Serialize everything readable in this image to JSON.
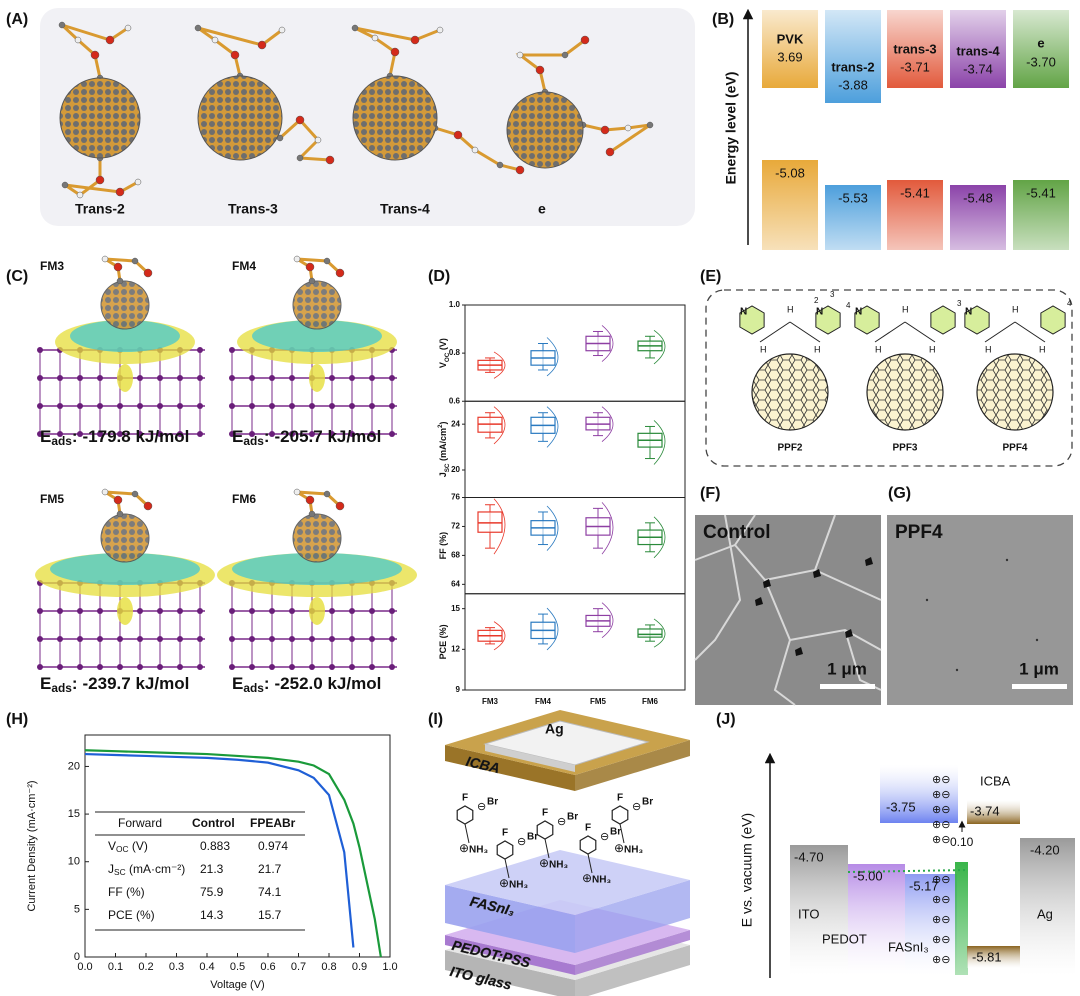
{
  "panel_a": {
    "label": "(A)",
    "molecules": [
      "Trans-2",
      "Trans-3",
      "Trans-4",
      "e"
    ]
  },
  "panel_b": {
    "label": "(B)",
    "axis_label": "Energy level (eV)",
    "columns": [
      {
        "name": "PVK",
        "lumo": "3.69",
        "homo": "-5.08",
        "color": "#e8a93a"
      },
      {
        "name": "trans-2",
        "lumo": "-3.88",
        "homo": "-5.53",
        "color": "#4d9fdc"
      },
      {
        "name": "trans-3",
        "lumo": "-3.71",
        "homo": "-5.41",
        "color": "#e25a3c"
      },
      {
        "name": "trans-4",
        "lumo": "-3.74",
        "homo": "-5.48",
        "color": "#8b43a9"
      },
      {
        "name": "e",
        "lumo": "-3.70",
        "homo": "-5.41",
        "color": "#62a446"
      }
    ]
  },
  "panel_c": {
    "label": "(C)",
    "energy_symbol": "E",
    "energy_subscript": "ads",
    "energy_separator": ":",
    "models": [
      {
        "name": "FM3",
        "energy": "-179.8 kJ/mol"
      },
      {
        "name": "FM4",
        "energy": "-205.7 kJ/mol"
      },
      {
        "name": "FM5",
        "energy": "-239.7 kJ/mol"
      },
      {
        "name": "FM6",
        "energy": "-252.0 kJ/mol"
      }
    ]
  },
  "panel_d": {
    "label": "(D)",
    "type": "box",
    "categories": [
      "FM3",
      "FM4",
      "FM5",
      "FM6"
    ],
    "colors": [
      "#e8392b",
      "#2a7ac0",
      "#8e3fa3",
      "#2a8a3a"
    ],
    "subplots": [
      {
        "y_label": [
          {
            "text": "V"
          },
          {
            "text": "OC",
            "sub": true
          },
          {
            "text": " (V)"
          }
        ],
        "ylim": [
          0.6,
          1.0
        ],
        "yticks": [
          0.6,
          0.8,
          {
            "value": 1.0,
            "label": "1.0"
          }
        ],
        "boxes": [
          [
            0.72,
            0.73,
            0.75,
            0.77,
            0.78
          ],
          [
            0.73,
            0.75,
            0.78,
            0.81,
            0.84
          ],
          [
            0.79,
            0.81,
            0.84,
            0.87,
            0.89
          ],
          [
            0.78,
            0.81,
            0.83,
            0.85,
            0.87
          ]
        ]
      },
      {
        "y_label": [
          {
            "text": "J"
          },
          {
            "text": "SC",
            "sub": true
          },
          {
            "text": " (mA/cm"
          },
          {
            "text": "2",
            "sup": true
          },
          {
            "text": ")"
          }
        ],
        "ylim": [
          17.6,
          26
        ],
        "yticks": [
          20,
          24
        ],
        "boxes": [
          [
            22.8,
            23.3,
            24,
            24.6,
            25
          ],
          [
            22.5,
            23.2,
            23.9,
            24.6,
            25
          ],
          [
            23,
            23.5,
            24,
            24.6,
            25
          ],
          [
            21,
            22,
            22.6,
            23.2,
            23.8
          ]
        ]
      },
      {
        "y_label": [
          {
            "text": "FF (%)"
          }
        ],
        "ylim": [
          62.7,
          76
        ],
        "yticks": [
          64,
          68,
          72,
          76
        ],
        "boxes": [
          [
            69,
            71.2,
            72.5,
            74,
            75
          ],
          [
            69.5,
            70.8,
            71.8,
            72.8,
            74
          ],
          [
            69,
            70.8,
            72,
            73.2,
            74.5
          ],
          [
            68.5,
            69.5,
            70.5,
            71.5,
            72.5
          ]
        ]
      },
      {
        "y_label": [
          {
            "text": "PCE (%)"
          }
        ],
        "ylim": [
          9,
          16.1
        ],
        "yticks": [
          9,
          12,
          15
        ],
        "boxes": [
          [
            12.4,
            12.6,
            13,
            13.4,
            13.6
          ],
          [
            12.4,
            12.8,
            13.4,
            14,
            14.6
          ],
          [
            13.3,
            13.7,
            14.1,
            14.5,
            15
          ],
          [
            12.6,
            12.9,
            13.1,
            13.5,
            13.8
          ]
        ]
      }
    ]
  },
  "panel_e": {
    "label": "(E)",
    "molecules": [
      "PPF2",
      "PPF3",
      "PPF4"
    ],
    "ring_labels": [
      [
        "2",
        "3",
        "4"
      ],
      [
        "3"
      ],
      [
        "4"
      ]
    ],
    "atoms": {
      "nitrogen": "N",
      "hydrogen": "H"
    }
  },
  "panel_f": {
    "label": "(F)",
    "sample": "Control",
    "scale_bar": "1 μm"
  },
  "panel_g": {
    "label": "(G)",
    "sample": "PPF4",
    "scale_bar": "1 μm"
  },
  "panel_h": {
    "label": "(H)",
    "type": "line",
    "x_label": "Voltage (V)",
    "y_label": "Current Density (mA·cm⁻²)",
    "x": [
      0,
      0.1,
      0.2,
      0.3,
      0.4,
      0.5,
      0.6,
      0.7,
      0.75,
      0.8,
      0.85,
      0.88,
      0.9,
      0.95,
      0.97
    ],
    "xlim": [
      0,
      1
    ],
    "xticks": [
      {
        "value": 0,
        "label": "0.0"
      },
      0.1,
      0.2,
      0.3,
      0.4,
      0.5,
      0.6,
      0.7,
      0.8,
      0.9,
      {
        "value": 1,
        "label": "1.0"
      }
    ],
    "ylim": [
      0,
      23.3
    ],
    "yticks": [
      0,
      5,
      10,
      15,
      20
    ],
    "series": [
      {
        "name": "Control",
        "color": "#1f5fd6",
        "values": [
          21.3,
          21.2,
          21.1,
          21.0,
          20.9,
          20.7,
          20.4,
          19.6,
          18.8,
          17,
          11,
          1,
          null,
          null,
          null
        ]
      },
      {
        "name": "FPEABr",
        "color": "#1a9a3a",
        "values": [
          21.7,
          21.6,
          21.5,
          21.4,
          21.3,
          21.1,
          20.9,
          20.5,
          20.1,
          19.2,
          16.5,
          14,
          11.5,
          4,
          0
        ]
      }
    ],
    "table": {
      "header": [
        "Forward",
        "Control",
        "FPEABr"
      ],
      "rows": [
        {
          "label": [
            {
              "text": "V"
            },
            {
              "text": "OC",
              "sub": true
            },
            {
              "text": " (V)"
            }
          ],
          "cells": [
            "0.883",
            "0.974"
          ]
        },
        {
          "label": [
            {
              "text": "J"
            },
            {
              "text": "SC",
              "sub": true
            },
            {
              "text": " (mA·cm⁻²)"
            }
          ],
          "cells": [
            "21.3",
            "21.7"
          ]
        },
        {
          "label": [
            {
              "text": "FF (%)"
            }
          ],
          "cells": [
            "75.9",
            "74.1"
          ]
        },
        {
          "label": [
            {
              "text": "PCE (%)"
            }
          ],
          "cells": [
            "14.3",
            "15.7"
          ]
        }
      ]
    }
  },
  "panel_i": {
    "label": "(I)",
    "layers": [
      "Ag",
      "ICBA",
      "FASnI₃",
      "PEDOT:PSS",
      "ITO glass"
    ],
    "atoms": {
      "fluorine": "F",
      "bromine": "Br",
      "ammonium": "NH₃"
    },
    "anion": "⊖",
    "cation": "⊕"
  },
  "panel_j": {
    "label": "(J)",
    "axis_label": "E vs. vacuum (eV)",
    "charges": "⊕⊖",
    "ito": {
      "name": "ITO",
      "level": "-4.70"
    },
    "pedot": {
      "name": "PEDOT",
      "level": "-5.00"
    },
    "fasni3": {
      "name": "FASnI₃",
      "cbm": "-3.75",
      "vbm": "-5.17"
    },
    "icba": {
      "name": "ICBA",
      "lumo": "-3.74",
      "homo": "-5.81"
    },
    "ag": {
      "name": "Ag",
      "level": "-4.20"
    },
    "offset": "0.10"
  }
}
